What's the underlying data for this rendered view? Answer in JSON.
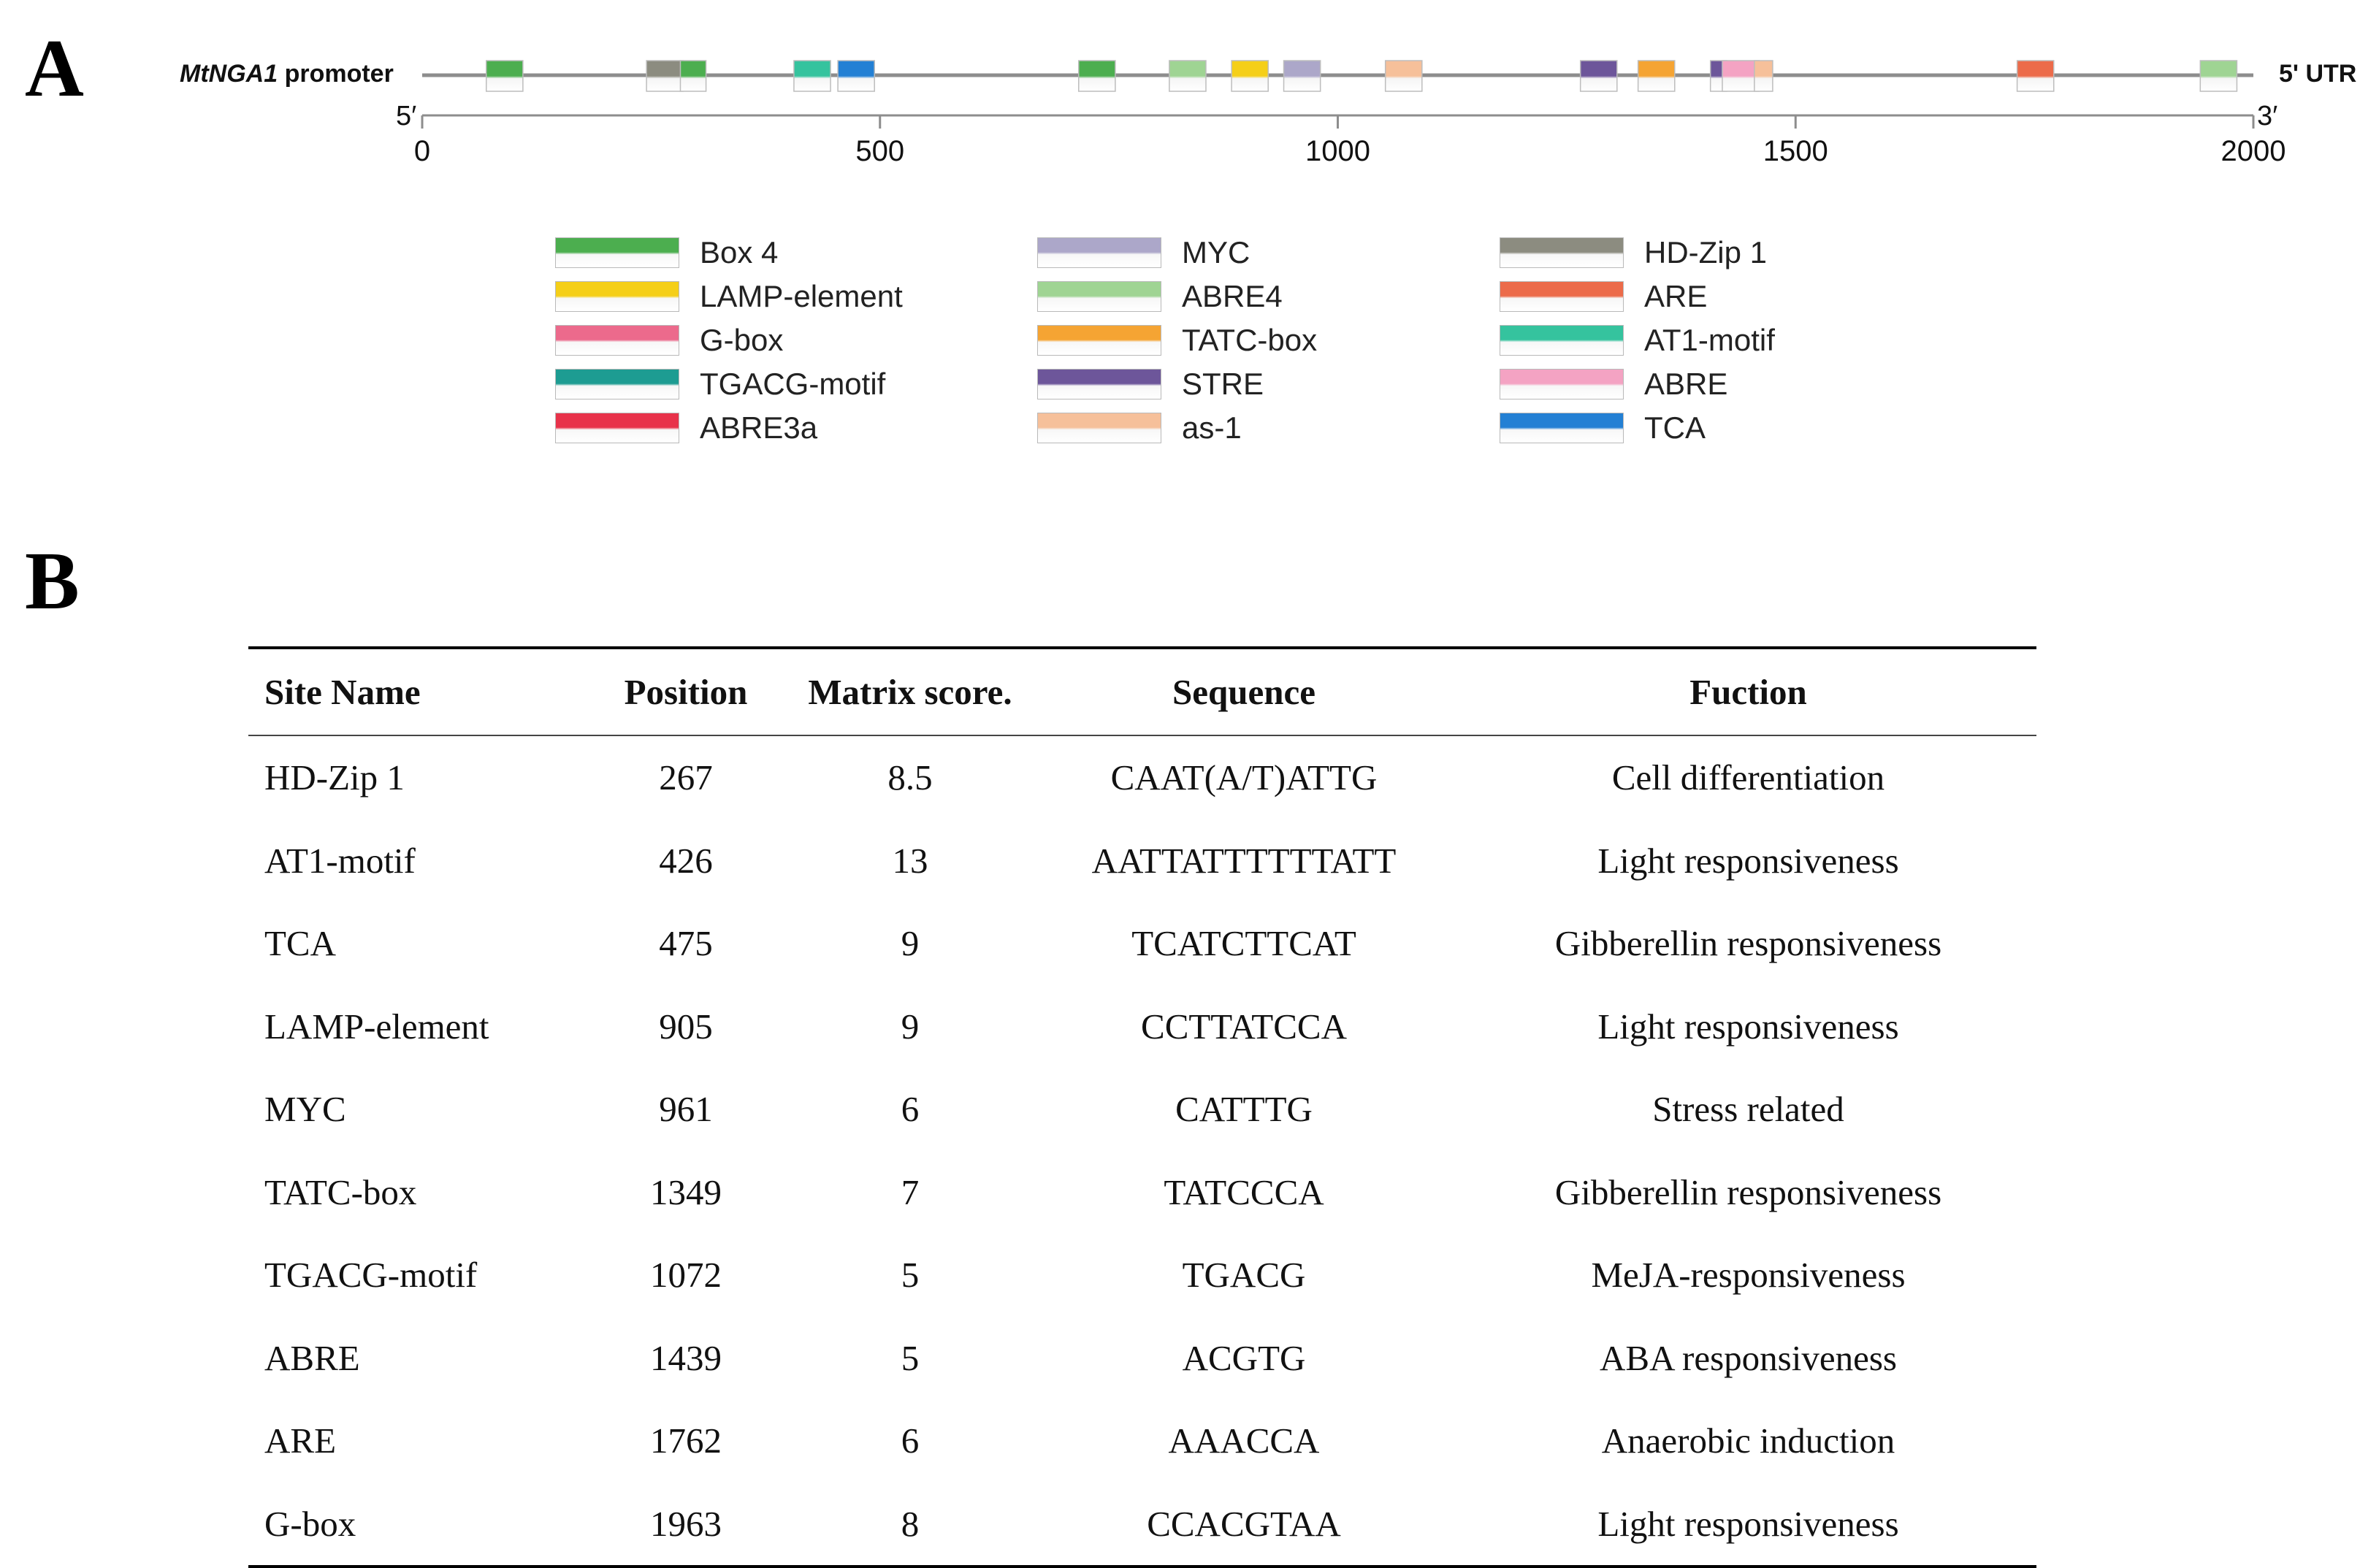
{
  "panel_a": {
    "letter": "A",
    "promoter_gene": "MtNGA1",
    "promoter_word": "promoter",
    "utr_label": "5' UTR",
    "end5": "5′",
    "end3": "3′",
    "axis": {
      "min": 0,
      "max": 2000,
      "ticks": [
        0,
        500,
        1000,
        1500,
        2000
      ]
    },
    "elements": [
      {
        "name": "Box 4",
        "start": 70,
        "end": 110
      },
      {
        "name": "HD-Zip 1",
        "start": 245,
        "end": 285
      },
      {
        "name": "Box 4",
        "start": 282,
        "end": 310
      },
      {
        "name": "AT1-motif",
        "start": 406,
        "end": 446
      },
      {
        "name": "TCA",
        "start": 454,
        "end": 494
      },
      {
        "name": "Box 4",
        "start": 717,
        "end": 757
      },
      {
        "name": "ABRE4",
        "start": 816,
        "end": 856
      },
      {
        "name": "LAMP-element",
        "start": 884,
        "end": 924
      },
      {
        "name": "MYC",
        "start": 941,
        "end": 981
      },
      {
        "name": "as-1",
        "start": 1052,
        "end": 1092
      },
      {
        "name": "STRE",
        "start": 1265,
        "end": 1305
      },
      {
        "name": "TATC-box",
        "start": 1328,
        "end": 1368
      },
      {
        "name": "STRE",
        "start": 1407,
        "end": 1425
      },
      {
        "name": "ABRE",
        "start": 1420,
        "end": 1460
      },
      {
        "name": "as-1",
        "start": 1455,
        "end": 1475
      },
      {
        "name": "ARE",
        "start": 1742,
        "end": 1782
      },
      {
        "name": "ABRE4",
        "start": 1942,
        "end": 1982
      }
    ]
  },
  "legend": {
    "columns": [
      [
        {
          "label": "Box 4",
          "color": "#4cae4f"
        },
        {
          "label": "LAMP-element",
          "color": "#f5cf18"
        },
        {
          "label": "G-box",
          "color": "#ec6a8c"
        },
        {
          "label": "TGACG-motif",
          "color": "#1d9c92"
        },
        {
          "label": "ABRE3a",
          "color": "#e8324a"
        }
      ],
      [
        {
          "label": "MYC",
          "color": "#aca7c9"
        },
        {
          "label": "ABRE4",
          "color": "#9fd493"
        },
        {
          "label": "TATC-box",
          "color": "#f5a433"
        },
        {
          "label": "STRE",
          "color": "#6d569a"
        },
        {
          "label": "as-1",
          "color": "#f6c09a"
        }
      ],
      [
        {
          "label": "HD-Zip 1",
          "color": "#8c8c80"
        },
        {
          "label": "ARE",
          "color": "#ec6b4a"
        },
        {
          "label": "AT1-motif",
          "color": "#35c39e"
        },
        {
          "label": "ABRE",
          "color": "#f4a3c3"
        },
        {
          "label": "TCA",
          "color": "#2380d4"
        }
      ]
    ]
  },
  "panel_b": {
    "letter": "B",
    "headers": [
      "Site Name",
      "Position",
      "Matrix score.",
      "Sequence",
      "Fuction"
    ],
    "rows": [
      {
        "site": "HD-Zip 1",
        "position": "267",
        "score": "8.5",
        "sequence": "CAAT(A/T)ATTG",
        "function": "Cell differentiation"
      },
      {
        "site": "AT1-motif",
        "position": "426",
        "score": "13",
        "sequence": "AATTATTTTTTATT",
        "function": "Light responsiveness"
      },
      {
        "site": "TCA",
        "position": "475",
        "score": "9",
        "sequence": "TCATCTTCAT",
        "function": "Gibberellin responsiveness"
      },
      {
        "site": "LAMP-element",
        "position": "905",
        "score": "9",
        "sequence": "CCTTATCCA",
        "function": "Light responsiveness"
      },
      {
        "site": "MYC",
        "position": "961",
        "score": "6",
        "sequence": "CATTTG",
        "function": "Stress related"
      },
      {
        "site": "TATC-box",
        "position": "1349",
        "score": "7",
        "sequence": "TATCCCA",
        "function": "Gibberellin responsiveness"
      },
      {
        "site": "TGACG-motif",
        "position": "1072",
        "score": "5",
        "sequence": "TGACG",
        "function": "MeJA-responsiveness"
      },
      {
        "site": "ABRE",
        "position": "1439",
        "score": "5",
        "sequence": "ACGTG",
        "function": "ABA responsiveness"
      },
      {
        "site": "ARE",
        "position": "1762",
        "score": "6",
        "sequence": "AAACCA",
        "function": "Anaerobic induction"
      },
      {
        "site": "G-box",
        "position": "1963",
        "score": "8",
        "sequence": "CCACGTAA",
        "function": "Light responsiveness"
      }
    ]
  }
}
